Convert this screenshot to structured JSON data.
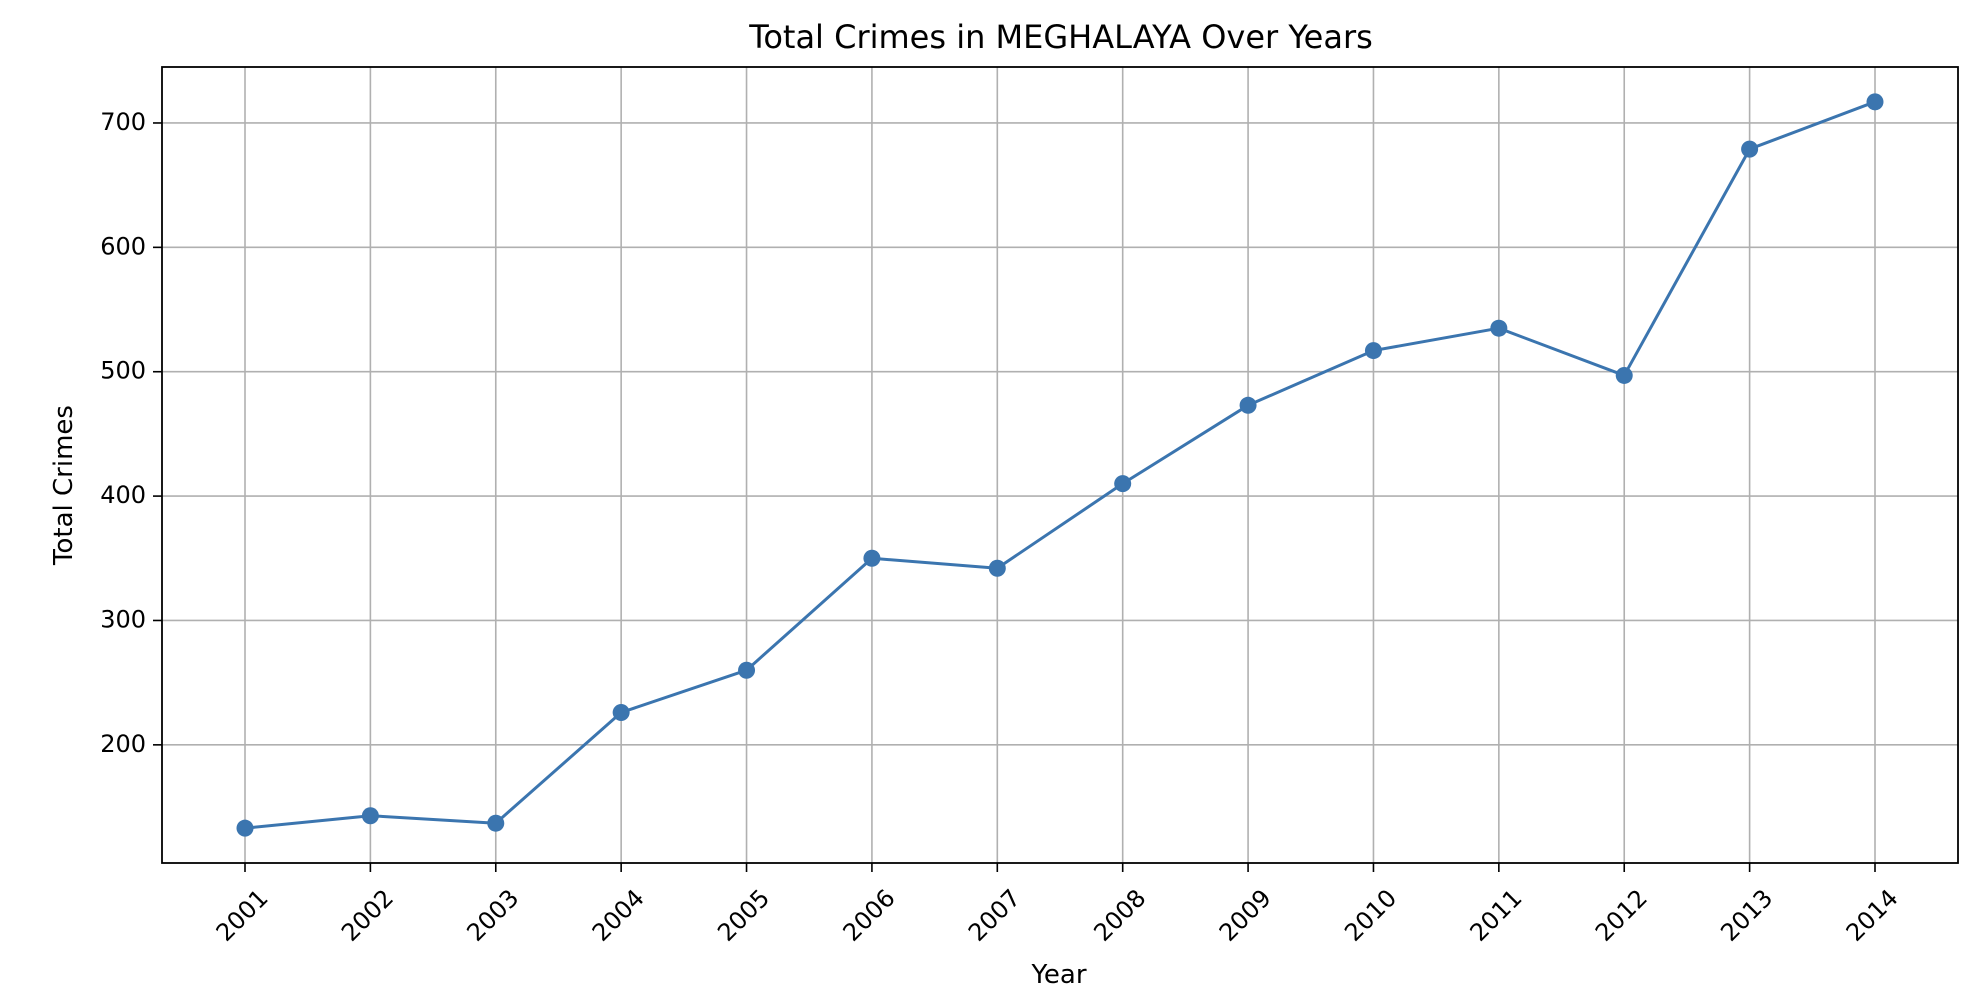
{
  "chart_data": {
    "type": "line",
    "title": "Total Crimes in MEGHALAYA Over Years",
    "xlabel": "Year",
    "ylabel": "Total Crimes",
    "categories": [
      "2001",
      "2002",
      "2003",
      "2004",
      "2005",
      "2006",
      "2007",
      "2008",
      "2009",
      "2010",
      "2011",
      "2012",
      "2013",
      "2014"
    ],
    "series": [
      {
        "values": [
          133,
          143,
          137,
          226,
          260,
          350,
          342,
          410,
          473,
          517,
          535,
          497,
          679,
          717
        ],
        "color": "#3b75af",
        "marker": "circle"
      }
    ],
    "yticks": [
      200,
      300,
      400,
      500,
      600,
      700
    ],
    "ylim": [
      105,
      745
    ],
    "grid": true,
    "legend": "none"
  }
}
